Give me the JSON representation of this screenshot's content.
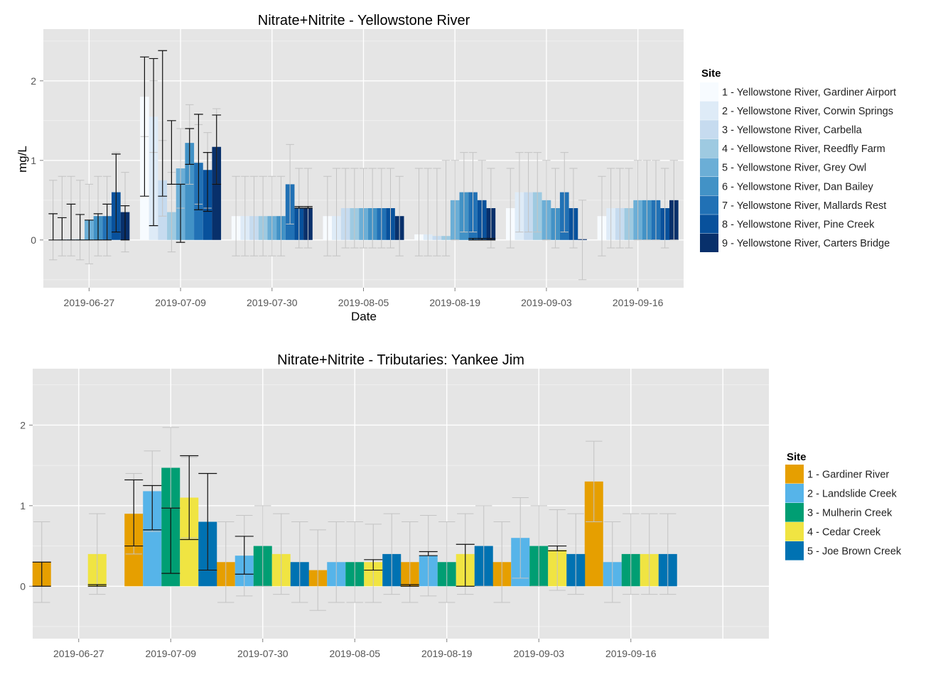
{
  "chart_data": [
    {
      "type": "bar",
      "title": "Nitrate+Nitrite - Yellowstone River",
      "xlabel": "Date",
      "ylabel": "mg/L",
      "ylim": [
        -0.6,
        2.65
      ],
      "yticks": [
        0,
        1,
        2
      ],
      "grid": true,
      "legend_title": "Site",
      "legend_position": "right",
      "categories": [
        "2019-06-27",
        "2019-07-09",
        "2019-07-30",
        "2019-08-05",
        "2019-08-19",
        "2019-09-03",
        "2019-09-16"
      ],
      "series": [
        {
          "name": "1 - Yellowstone River, Gardiner Airport",
          "color": "#f7fbff",
          "values": [
            0.01,
            1.8,
            0.3,
            0.3,
            0.07,
            0.4,
            0.3
          ],
          "error_low": [
            -0.25,
            1.3,
            -0.2,
            -0.2,
            -0.2,
            -0.1,
            -0.2
          ],
          "error_high": [
            0.75,
            2.3,
            0.8,
            0.8,
            0.9,
            0.9,
            0.8
          ],
          "bounds": [
            [
              0.0,
              0.33
            ],
            [
              0.55,
              2.3
            ],
            null,
            null,
            null,
            null,
            null
          ]
        },
        {
          "name": "2 - Yellowstone River, Corwin Springs",
          "color": "#deebf7",
          "values": [
            0.01,
            1.55,
            0.3,
            0.3,
            0.07,
            0.6,
            0.4
          ],
          "error_low": [
            -0.2,
            1.1,
            -0.2,
            -0.2,
            -0.2,
            0.1,
            -0.1
          ],
          "error_high": [
            0.8,
            2.0,
            0.8,
            0.9,
            0.9,
            1.1,
            0.9
          ],
          "bounds": [
            [
              0.0,
              0.28
            ],
            [
              0.18,
              2.28
            ],
            null,
            null,
            null,
            null,
            null
          ]
        },
        {
          "name": "3 - Yellowstone River, Carbella",
          "color": "#c6dbef",
          "values": [
            0.01,
            0.75,
            0.3,
            0.4,
            0.05,
            0.6,
            0.4
          ],
          "error_low": [
            -0.2,
            0.3,
            -0.2,
            -0.1,
            -0.2,
            0.1,
            -0.1
          ],
          "error_high": [
            0.8,
            1.25,
            0.8,
            0.9,
            0.9,
            1.1,
            0.9
          ],
          "bounds": [
            [
              0.0,
              0.45
            ],
            [
              0.55,
              2.38
            ],
            null,
            null,
            null,
            null,
            null
          ]
        },
        {
          "name": "4 - Yellowstone River, Reedfly Farm",
          "color": "#9ecae1",
          "values": [
            0.01,
            0.35,
            0.3,
            0.4,
            0.05,
            0.6,
            0.4
          ],
          "error_low": [
            -0.25,
            -0.15,
            -0.2,
            -0.1,
            -0.2,
            0.1,
            -0.1
          ],
          "error_high": [
            0.75,
            0.85,
            0.8,
            0.9,
            1.0,
            1.1,
            0.9
          ],
          "bounds": [
            [
              0.0,
              0.32
            ],
            [
              0.7,
              1.5
            ],
            null,
            null,
            null,
            null,
            null
          ]
        },
        {
          "name": "5 - Yellowstone River, Grey Owl",
          "color": "#6baed6",
          "values": [
            0.25,
            0.9,
            0.3,
            0.4,
            0.5,
            0.5,
            0.5
          ],
          "error_low": [
            -0.3,
            0.4,
            -0.2,
            -0.1,
            0.0,
            0.0,
            0.0
          ],
          "error_high": [
            0.7,
            1.4,
            0.8,
            0.9,
            1.0,
            1.0,
            1.0
          ],
          "bounds": [
            [
              0.0,
              0.25
            ],
            [
              -0.03,
              0.7
            ],
            null,
            null,
            null,
            null,
            null
          ]
        },
        {
          "name": "6 - Yellowstone River, Dan Bailey",
          "color": "#4292c6",
          "values": [
            0.3,
            1.22,
            0.3,
            0.4,
            0.6,
            0.4,
            0.5
          ],
          "error_low": [
            -0.2,
            0.7,
            -0.2,
            -0.1,
            0.1,
            -0.1,
            0.0
          ],
          "error_high": [
            0.8,
            1.7,
            0.8,
            0.9,
            1.1,
            0.9,
            1.0
          ],
          "bounds": [
            [
              0.0,
              0.33
            ],
            [
              0.95,
              1.4
            ],
            null,
            null,
            null,
            null,
            null
          ]
        },
        {
          "name": "7 - Yellowstone River, Mallards Rest",
          "color": "#2171b5",
          "values": [
            0.3,
            0.97,
            0.7,
            0.4,
            0.6,
            0.6,
            0.5
          ],
          "error_low": [
            -0.2,
            0.45,
            0.2,
            -0.1,
            0.1,
            0.1,
            0.0
          ],
          "error_high": [
            0.8,
            1.45,
            1.2,
            0.9,
            1.1,
            1.1,
            1.0
          ],
          "bounds": [
            [
              0.0,
              0.45
            ],
            [
              0.38,
              1.58
            ],
            null,
            null,
            [
              0.0,
              0.02
            ],
            null,
            null
          ]
        },
        {
          "name": "8 - Yellowstone River, Pine Creek",
          "color": "#08519c",
          "values": [
            0.6,
            0.88,
            0.4,
            0.4,
            0.5,
            0.4,
            0.4
          ],
          "error_low": [
            0.1,
            0.4,
            -0.1,
            -0.1,
            0.0,
            -0.1,
            -0.1
          ],
          "error_high": [
            1.1,
            1.35,
            0.9,
            0.9,
            1.0,
            0.9,
            0.9
          ],
          "bounds": [
            [
              0.1,
              1.08
            ],
            [
              0.36,
              1.1
            ],
            [
              0.4,
              0.42
            ],
            null,
            [
              0.0,
              0.02
            ],
            null,
            null
          ]
        },
        {
          "name": "9 - Yellowstone River, Carters Bridge",
          "color": "#08306b",
          "values": [
            0.35,
            1.17,
            0.4,
            0.3,
            0.4,
            0.01,
            0.5
          ],
          "error_low": [
            -0.15,
            0.7,
            -0.1,
            -0.2,
            -0.1,
            -0.5,
            0.0
          ],
          "error_high": [
            0.85,
            1.65,
            0.9,
            0.8,
            0.9,
            0.5,
            1.0
          ],
          "bounds": [
            [
              0.0,
              0.43
            ],
            [
              0.7,
              1.57
            ],
            [
              0.4,
              0.42
            ],
            null,
            [
              0.0,
              0.02
            ],
            null,
            null
          ]
        }
      ]
    },
    {
      "type": "bar",
      "title": "Nitrate+Nitrite - Tributaries: Yankee Jim",
      "xlabel": "",
      "ylabel": "",
      "ylim": [
        -0.65,
        2.7
      ],
      "yticks": [
        0,
        1,
        2
      ],
      "grid": true,
      "legend_title": "Site",
      "legend_position": "right",
      "categories": [
        "2019-06-27",
        "2019-07-09",
        "2019-07-30",
        "2019-08-05",
        "2019-08-19",
        "2019-09-03",
        "2019-09-16"
      ],
      "extra_group": true,
      "series": [
        {
          "name": "1 - Gardiner River",
          "color": "#e69f00",
          "values": [
            0.3,
            0.9,
            0.3,
            0.2,
            0.3,
            0.3,
            1.3
          ],
          "error_low": [
            -0.2,
            0.4,
            -0.2,
            -0.3,
            -0.2,
            -0.2,
            0.8
          ],
          "error_high": [
            0.8,
            1.4,
            0.8,
            0.7,
            0.8,
            0.8,
            1.8
          ],
          "bounds": [
            [
              0.0,
              0.3
            ],
            [
              0.5,
              1.32
            ],
            null,
            null,
            [
              0.0,
              0.02
            ],
            null,
            null
          ]
        },
        {
          "name": "2 - Landslide Creek",
          "color": "#56b4e9",
          "values": [
            null,
            1.18,
            0.38,
            0.3,
            0.38,
            0.6,
            0.3
          ],
          "error_low": [
            null,
            0.68,
            -0.12,
            -0.2,
            -0.12,
            0.1,
            -0.2
          ],
          "error_high": [
            null,
            1.68,
            0.88,
            0.8,
            0.88,
            1.1,
            0.8
          ],
          "bounds": [
            null,
            [
              0.7,
              1.25
            ],
            [
              0.15,
              0.62
            ],
            null,
            [
              0.38,
              0.43
            ],
            null,
            null
          ]
        },
        {
          "name": "3 - Mulherin Creek",
          "color": "#009e73",
          "values": [
            null,
            1.47,
            0.5,
            0.3,
            0.3,
            0.5,
            0.4
          ],
          "error_low": [
            null,
            0.97,
            0.0,
            -0.2,
            -0.2,
            0.0,
            -0.1
          ],
          "error_high": [
            null,
            1.97,
            1.0,
            0.8,
            0.8,
            1.0,
            0.9
          ],
          "bounds": [
            null,
            [
              0.16,
              0.97
            ],
            null,
            null,
            null,
            null,
            null
          ]
        },
        {
          "name": "4 - Cedar Creek",
          "color": "#f0e442",
          "values": [
            0.4,
            1.1,
            0.4,
            0.3,
            0.4,
            0.45,
            0.4
          ],
          "error_low": [
            -0.1,
            0.6,
            -0.1,
            -0.2,
            -0.1,
            -0.05,
            -0.1
          ],
          "error_high": [
            0.9,
            1.6,
            0.9,
            0.77,
            0.9,
            0.95,
            0.9
          ],
          "bounds": [
            [
              0.0,
              0.02
            ],
            [
              0.58,
              1.62
            ],
            null,
            [
              0.2,
              0.33
            ],
            [
              0.0,
              0.52
            ],
            [
              0.44,
              0.5
            ],
            null
          ]
        },
        {
          "name": "5 - Joe Brown Creek",
          "color": "#0072b2",
          "values": [
            null,
            0.8,
            0.3,
            0.4,
            0.5,
            0.4,
            0.4
          ],
          "error_low": [
            null,
            0.2,
            -0.2,
            -0.1,
            0.0,
            -0.1,
            -0.1
          ],
          "error_high": [
            null,
            1.4,
            0.8,
            0.9,
            1.0,
            0.9,
            0.9
          ],
          "bounds": [
            null,
            [
              0.2,
              1.4
            ],
            null,
            null,
            null,
            null,
            null
          ]
        }
      ]
    }
  ]
}
